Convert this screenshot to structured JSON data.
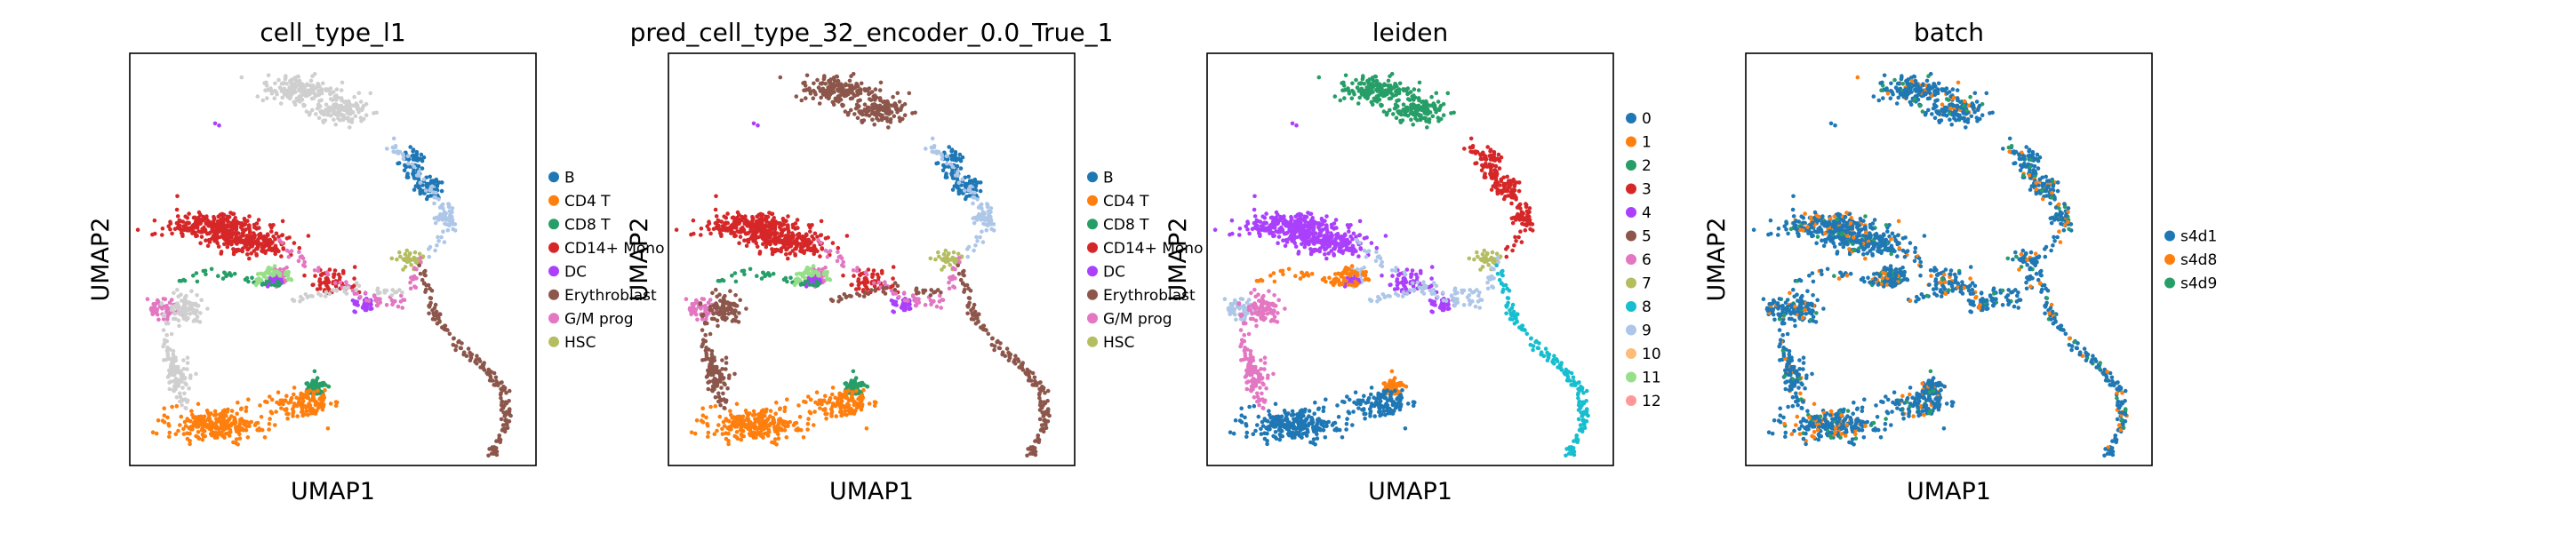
{
  "chart_data": [
    {
      "type": "scatter",
      "title": "cell_type_l1",
      "xlabel": "UMAP1",
      "ylabel": "UMAP2",
      "legend_position": "right",
      "grid": false,
      "legend": [
        {
          "label": "B",
          "color": "#1f77b4"
        },
        {
          "label": "CD4 T",
          "color": "#ff7f0e"
        },
        {
          "label": "CD8 T",
          "color": "#279e68"
        },
        {
          "label": "CD14+ Mono",
          "color": "#d62728"
        },
        {
          "label": "DC",
          "color": "#aa40fc"
        },
        {
          "label": "Erythroblast",
          "color": "#8c564b"
        },
        {
          "label": "G/M prog",
          "color": "#e377c2"
        },
        {
          "label": "HSC",
          "color": "#b5bd61"
        }
      ]
    },
    {
      "type": "scatter",
      "title": "pred_cell_type_32_encoder_0.0_True_1",
      "xlabel": "UMAP1",
      "ylabel": "UMAP2",
      "legend_position": "right",
      "grid": false,
      "legend": [
        {
          "label": "B",
          "color": "#1f77b4"
        },
        {
          "label": "CD4 T",
          "color": "#ff7f0e"
        },
        {
          "label": "CD8 T",
          "color": "#279e68"
        },
        {
          "label": "CD14+ Mono",
          "color": "#d62728"
        },
        {
          "label": "DC",
          "color": "#aa40fc"
        },
        {
          "label": "Erythroblast",
          "color": "#8c564b"
        },
        {
          "label": "G/M prog",
          "color": "#e377c2"
        },
        {
          "label": "HSC",
          "color": "#b5bd61"
        }
      ]
    },
    {
      "type": "scatter",
      "title": "leiden",
      "xlabel": "UMAP1",
      "ylabel": "UMAP2",
      "legend_position": "right",
      "grid": false,
      "legend": [
        {
          "label": "0",
          "color": "#1f77b4"
        },
        {
          "label": "1",
          "color": "#ff7f0e"
        },
        {
          "label": "2",
          "color": "#279e68"
        },
        {
          "label": "3",
          "color": "#d62728"
        },
        {
          "label": "4",
          "color": "#aa40fc"
        },
        {
          "label": "5",
          "color": "#8c564b"
        },
        {
          "label": "6",
          "color": "#e377c2"
        },
        {
          "label": "7",
          "color": "#b5bd61"
        },
        {
          "label": "8",
          "color": "#17becf"
        },
        {
          "label": "9",
          "color": "#aec7e8"
        },
        {
          "label": "10",
          "color": "#ffbb78"
        },
        {
          "label": "11",
          "color": "#98df8a"
        },
        {
          "label": "12",
          "color": "#ff9896"
        }
      ]
    },
    {
      "type": "scatter",
      "title": "batch",
      "xlabel": "UMAP1",
      "ylabel": "UMAP2",
      "legend_position": "right",
      "grid": false,
      "legend": [
        {
          "label": "s4d1",
          "color": "#1f77b4"
        },
        {
          "label": "s4d8",
          "color": "#ff7f0e"
        },
        {
          "label": "s4d9",
          "color": "#279e68"
        }
      ]
    }
  ]
}
